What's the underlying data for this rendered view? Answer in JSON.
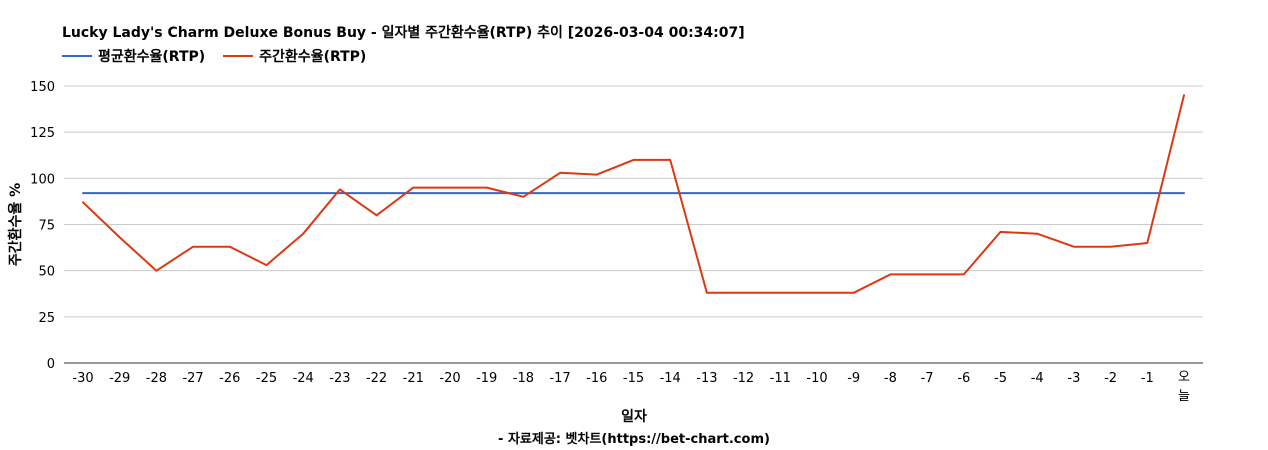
{
  "chart_data": {
    "type": "line",
    "title": "Lucky Lady's Charm Deluxe Bonus Buy - 일자별 주간환수율(RTP) 추이 [2026-03-04 00:34:07]",
    "xlabel": "일자",
    "ylabel": "주간환수율 %",
    "categories": [
      "-30",
      "-29",
      "-28",
      "-27",
      "-26",
      "-25",
      "-24",
      "-23",
      "-22",
      "-21",
      "-20",
      "-19",
      "-18",
      "-17",
      "-16",
      "-15",
      "-14",
      "-13",
      "-12",
      "-11",
      "-10",
      "-9",
      "-8",
      "-7",
      "-6",
      "-5",
      "-4",
      "-3",
      "-2",
      "-1",
      "오늘"
    ],
    "yticks": [
      0,
      25,
      50,
      75,
      100,
      125,
      150
    ],
    "ylim": [
      0,
      150
    ],
    "grid": true,
    "legend_position": "top-left",
    "series": [
      {
        "name": "평균환수율(RTP)",
        "color": "#3366cc",
        "values": [
          92,
          92,
          92,
          92,
          92,
          92,
          92,
          92,
          92,
          92,
          92,
          92,
          92,
          92,
          92,
          92,
          92,
          92,
          92,
          92,
          92,
          92,
          92,
          92,
          92,
          92,
          92,
          92,
          92,
          92,
          92
        ]
      },
      {
        "name": "주간환수율(RTP)",
        "color": "#dc3912",
        "values": [
          87,
          68,
          50,
          63,
          63,
          53,
          70,
          94,
          80,
          95,
          95,
          95,
          90,
          103,
          102,
          110,
          110,
          38,
          38,
          38,
          38,
          38,
          48,
          48,
          48,
          71,
          70,
          63,
          63,
          65,
          145
        ]
      }
    ]
  },
  "footer": {
    "source": "- 자료제공: 벳차트(https://bet-chart.com)"
  }
}
